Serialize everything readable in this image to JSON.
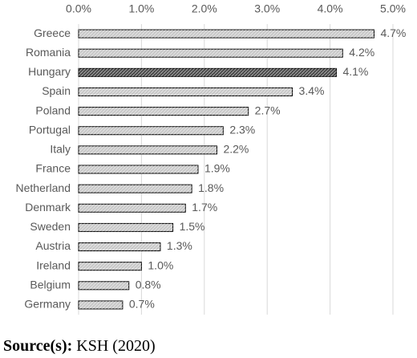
{
  "chart_data": {
    "type": "bar",
    "orientation": "horizontal",
    "categories": [
      "Greece",
      "Romania",
      "Hungary",
      "Spain",
      "Poland",
      "Portugal",
      "Italy",
      "France",
      "Netherland",
      "Denmark",
      "Sweden",
      "Austria",
      "Ireland",
      "Belgium",
      "Germany"
    ],
    "values": [
      4.7,
      4.2,
      4.1,
      3.4,
      2.7,
      2.3,
      2.2,
      1.9,
      1.8,
      1.7,
      1.5,
      1.3,
      1.0,
      0.8,
      0.7
    ],
    "value_labels": [
      "4.7%",
      "4.2%",
      "4.1%",
      "3.4%",
      "2.7%",
      "2.3%",
      "2.2%",
      "1.9%",
      "1.8%",
      "1.7%",
      "1.5%",
      "1.3%",
      "1.0%",
      "0.8%",
      "0.7%"
    ],
    "colors": [
      "#c8c8c8",
      "#c8c8c8",
      "#4a4a4a",
      "#c8c8c8",
      "#c8c8c8",
      "#c8c8c8",
      "#c8c8c8",
      "#c8c8c8",
      "#c8c8c8",
      "#c8c8c8",
      "#c8c8c8",
      "#c8c8c8",
      "#c8c8c8",
      "#c8c8c8",
      "#c8c8c8"
    ],
    "xlim": [
      0,
      5
    ],
    "xticks": [
      {
        "value": 0,
        "label": "0.0%"
      },
      {
        "value": 1,
        "label": "1.0%"
      },
      {
        "value": 2,
        "label": "2.0%"
      },
      {
        "value": 3,
        "label": "3.0%"
      },
      {
        "value": 4,
        "label": "4.0%"
      },
      {
        "value": 5,
        "label": "5.0%"
      }
    ],
    "grid": true,
    "source_label": "Source(s):",
    "source_text": "KSH (2020)"
  }
}
